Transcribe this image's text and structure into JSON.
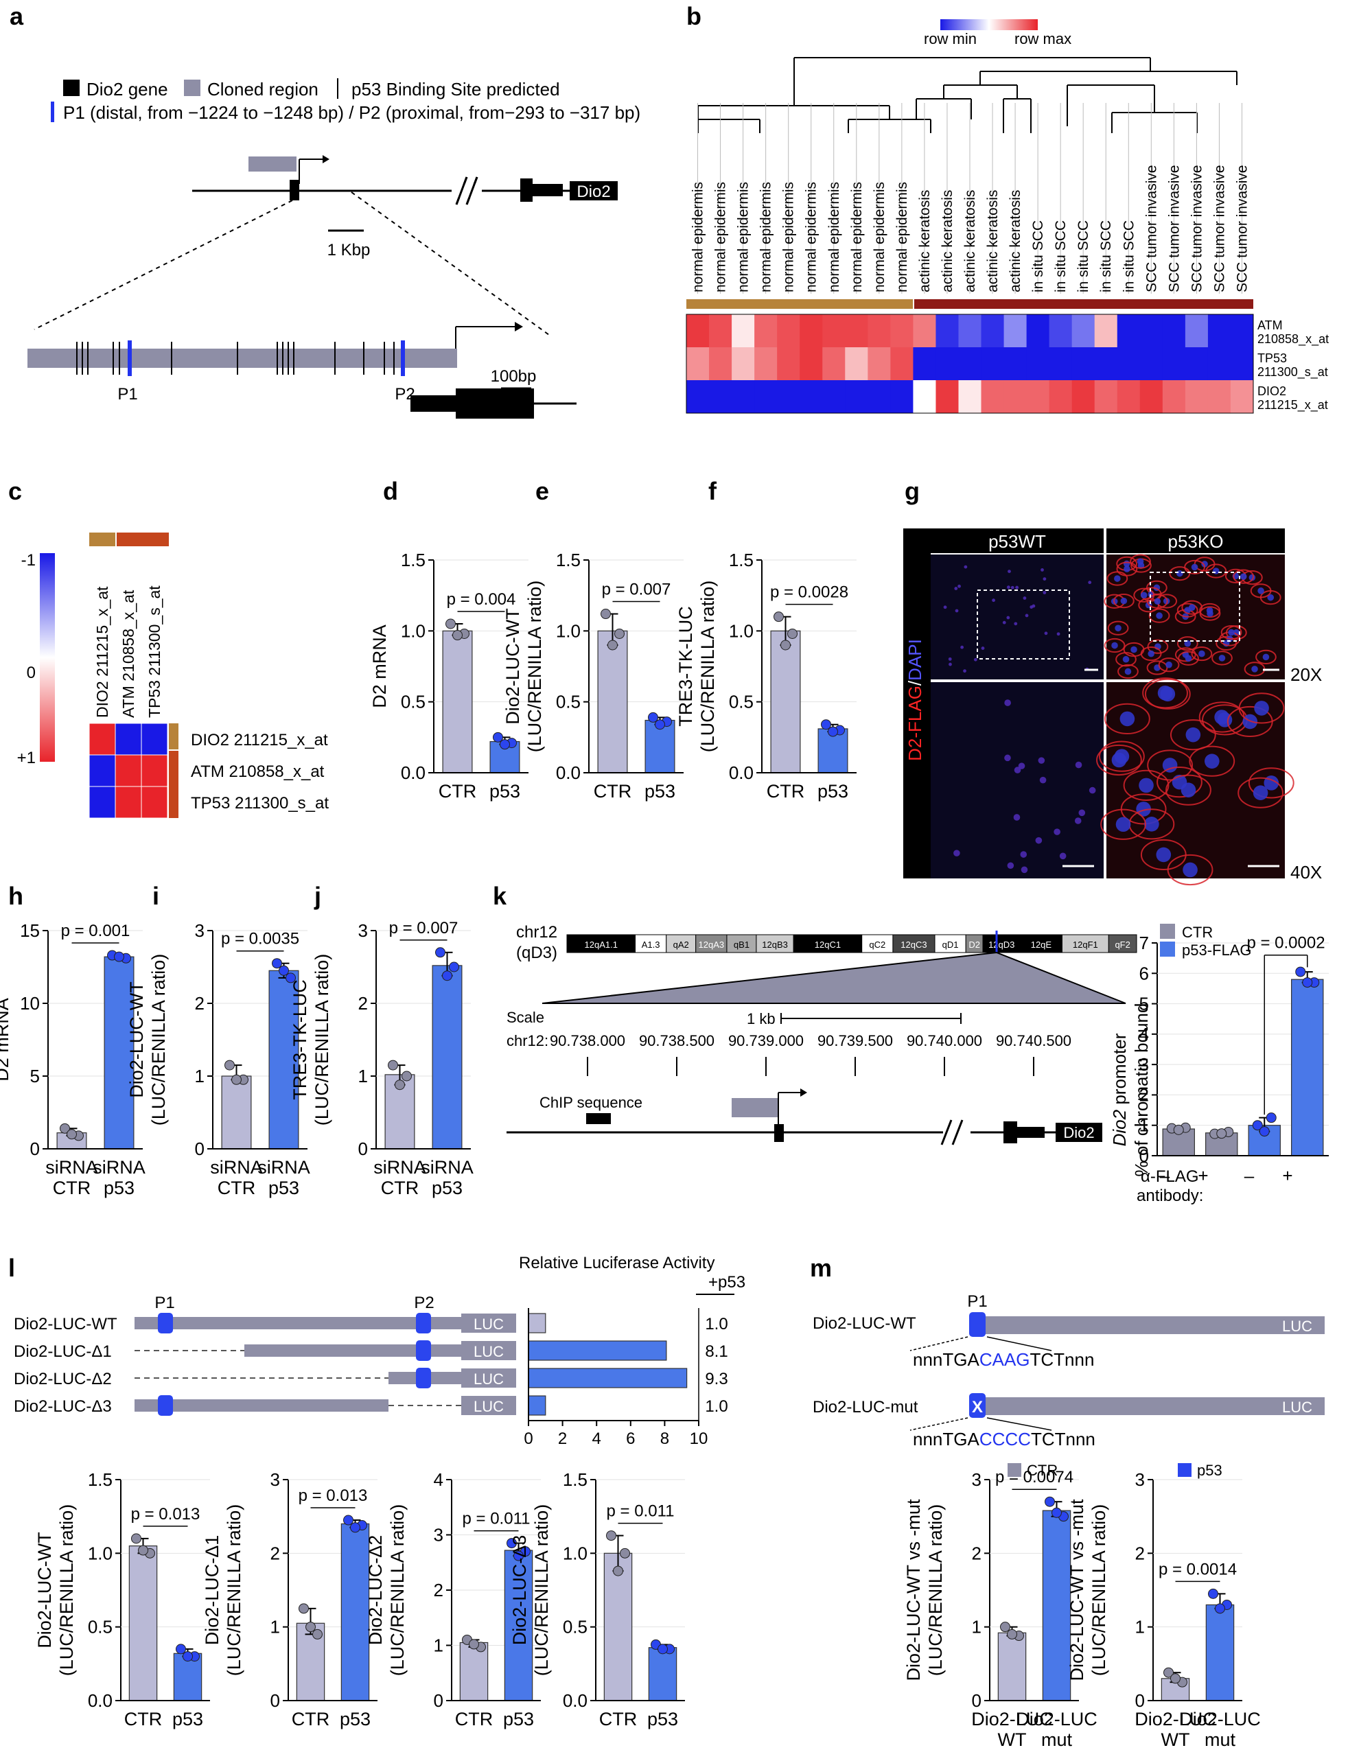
{
  "panel_letters": [
    "a",
    "b",
    "c",
    "d",
    "e",
    "f",
    "g",
    "h",
    "i",
    "j",
    "k",
    "l",
    "m"
  ],
  "colors": {
    "ctr": "#b9b9d6",
    "p53": "#4a78e8",
    "dark_gray": "#8e8ea6",
    "heat_red": "#e8232a",
    "heat_blue": "#1919e6",
    "brown": "#b7833a",
    "dark_red": "#8e1a16"
  },
  "panel_a": {
    "legend_dio2": "Dio2 gene",
    "legend_cloned": "Cloned region",
    "legend_binding": "p53 Binding Site predicted",
    "legend_p": "P1 (distal, from −1224 to −1248 bp) / P2 (proximal, from−293 to −317 bp)",
    "gene_label": "Dio2",
    "scale_kbp": "1 Kbp",
    "scale_bp": "100bp",
    "p1": "P1",
    "p2": "P2"
  },
  "panel_b": {
    "row_min": "row min",
    "row_max": "row max",
    "columns": [
      "normal epidermis",
      "normal epidermis",
      "normal epidermis",
      "normal epidermis",
      "normal epidermis",
      "normal epidermis",
      "normal epidermis",
      "normal epidermis",
      "normal epidermis",
      "normal epidermis",
      "actinic keratosis",
      "actinic keratosis",
      "actinic keratosis",
      "actinic keratosis",
      "actinic keratosis",
      "in situ SCC",
      "in situ SCC",
      "in situ SCC",
      "in situ SCC",
      "in situ SCC",
      "SCC tumor invasive",
      "SCC tumor invasive",
      "SCC tumor invasive",
      "SCC tumor invasive",
      "SCC tumor invasive"
    ],
    "rows": [
      {
        "label1": "ATM",
        "label2": "210858_x_at",
        "values": [
          0.9,
          0.8,
          0.1,
          0.7,
          0.8,
          0.9,
          0.85,
          0.85,
          0.8,
          0.75,
          0.6,
          -0.9,
          -0.7,
          -0.9,
          -0.5,
          -1,
          -0.8,
          -0.6,
          0.3,
          -1,
          -1,
          -1,
          -0.6,
          -1,
          -1
        ]
      },
      {
        "label1": "TP53",
        "label2": "211300_s_at",
        "values": [
          0.5,
          0.7,
          0.3,
          0.6,
          0.8,
          0.9,
          0.7,
          0.3,
          0.6,
          0.8,
          -1,
          -1,
          -1,
          -1,
          -1,
          -1,
          -1,
          -1,
          -1,
          -1,
          -1,
          -1,
          -1,
          -1,
          -1
        ]
      },
      {
        "label1": "DIO2",
        "label2": "211215_x_at",
        "values": [
          -1,
          -1,
          -1,
          -1,
          -1,
          -1,
          -1,
          -1,
          -1,
          -1,
          0,
          0.9,
          0.1,
          0.7,
          0.7,
          0.7,
          0.8,
          0.9,
          0.7,
          0.8,
          0.9,
          0.7,
          0.6,
          0.6,
          0.5
        ]
      }
    ]
  },
  "panel_c": {
    "scale_top": "-1",
    "scale_mid": "0",
    "scale_bottom": "+1",
    "col_labels": [
      "DIO2 211215_x_at",
      "ATM 210858_x_at",
      "TP53 211300_s_at"
    ],
    "row_labels": [
      "DIO2 211215_x_at",
      "ATM 210858_x_at",
      "TP53 211300_s_at"
    ],
    "matrix": [
      [
        1,
        -1,
        -1
      ],
      [
        -1,
        1,
        1
      ],
      [
        -1,
        1,
        1
      ]
    ]
  },
  "panel_g": {
    "col1": "p53WT",
    "col2": "p53KO",
    "side_label_red": "D2-FLAG",
    "side_label_sep": "/",
    "side_label_blue": "DAPI",
    "mag1": "20X",
    "mag2": "40X"
  },
  "panel_k": {
    "chrom": "chr12",
    "chrom_sub": "(qD3)",
    "bands": [
      "12qA1.1",
      "A1.3",
      "qA2",
      "12qA3",
      "qB1",
      "12qB3",
      "12qC1",
      "qC2",
      "12qC3",
      "qD1",
      "D2",
      "12qD3",
      "12qE",
      "12qF1",
      "qF2"
    ],
    "scale_label": "Scale",
    "scale_bar": "1 kb",
    "chr_label": "chr12:",
    "positions": [
      "90.738.000",
      "90.738.500",
      "90.739.000",
      "90.739.500",
      "90.740.000",
      "90.740.500"
    ],
    "chip_label": "ChIP sequence",
    "gene_label": "Dio2",
    "legend_ctr": "CTR",
    "legend_p53": "p53-FLAG",
    "ylabel_italic": "Dio2",
    "ylabel_1": " promoter",
    "ylabel_2": "% of chromatin bound",
    "antibody_line1": "α-FLAG",
    "antibody_line2": "antibody:",
    "signs": [
      "–",
      "+",
      "–",
      "+"
    ]
  },
  "panel_l": {
    "title": "Relative Luciferase Activity",
    "subtitle": "+p53",
    "p1": "P1",
    "p2": "P2",
    "luc": "LUC",
    "constructs": [
      {
        "name": "Dio2-LUC-WT",
        "value": "1.0"
      },
      {
        "name": "Dio2-LUC-Δ1",
        "value": "8.1"
      },
      {
        "name": "Dio2-LUC-Δ2",
        "value": "9.3"
      },
      {
        "name": "Dio2-LUC-Δ3",
        "value": "1.0"
      }
    ]
  },
  "panel_m": {
    "wt_label": "Dio2-LUC-WT",
    "mut_label": "Dio2-LUC-mut",
    "p1": "P1",
    "luc": "LUC",
    "x_mark": "X",
    "seq_wt": [
      "nnnTGA",
      "CAAG",
      "TCTnnn"
    ],
    "seq_mut": [
      "nnnTGA",
      "CCCC",
      "TCTnnn"
    ],
    "legend_ctr": "CTR",
    "legend_p53": "p53"
  },
  "chart_data": [
    {
      "id": "d",
      "type": "bar",
      "ylabel": [
        "D2 mRNA"
      ],
      "categories": [
        "CTR",
        "p53"
      ],
      "values": [
        1.0,
        0.22
      ],
      "points": [
        [
          1.05,
          0.98,
          0.97
        ],
        [
          0.25,
          0.21,
          0.2
        ]
      ],
      "ylim": [
        0,
        1.5
      ],
      "yticks": [
        "0.0",
        "0.5",
        "1.0",
        "1.5"
      ],
      "pvalue": "p = 0.004"
    },
    {
      "id": "e",
      "type": "bar",
      "ylabel": [
        "Dio2-LUC-WT",
        "(LUC/RENILLA ratio)"
      ],
      "categories": [
        "CTR",
        "p53"
      ],
      "values": [
        1.0,
        0.37
      ],
      "points": [
        [
          1.12,
          0.98,
          0.9
        ],
        [
          0.39,
          0.36,
          0.34
        ]
      ],
      "ylim": [
        0,
        1.5
      ],
      "yticks": [
        "0.0",
        "0.5",
        "1.0",
        "1.5"
      ],
      "pvalue": "p = 0.007"
    },
    {
      "id": "f",
      "type": "bar",
      "ylabel": [
        "TRE3-TK-LUC",
        "(LUC/RENILLA ratio)"
      ],
      "categories": [
        "CTR",
        "p53"
      ],
      "values": [
        1.0,
        0.31
      ],
      "points": [
        [
          1.1,
          0.98,
          0.9
        ],
        [
          0.34,
          0.3,
          0.29
        ]
      ],
      "ylim": [
        0,
        1.5
      ],
      "yticks": [
        "0.0",
        "0.5",
        "1.0",
        "1.5"
      ],
      "pvalue": "p = 0.0028"
    },
    {
      "id": "h",
      "type": "bar",
      "ylabel": [
        "D2 mRNA"
      ],
      "categories": [
        "siRNA\nCTR",
        "siRNA\np53"
      ],
      "values": [
        1.1,
        13.2
      ],
      "points": [
        [
          1.4,
          0.9,
          1.0
        ],
        [
          13.3,
          13.1,
          13.2
        ]
      ],
      "ylim": [
        0,
        15
      ],
      "yticks": [
        "0",
        "5",
        "10",
        "15"
      ],
      "pvalue": "p = 0.001"
    },
    {
      "id": "i",
      "type": "bar",
      "ylabel": [
        "Dio2-LUC-WT",
        "(LUC/RENILLA ratio)"
      ],
      "categories": [
        "siRNA\nCTR",
        "siRNA\np53"
      ],
      "values": [
        1.0,
        2.45
      ],
      "points": [
        [
          1.15,
          0.95,
          0.95
        ],
        [
          2.55,
          2.35,
          2.45
        ]
      ],
      "ylim": [
        0,
        3
      ],
      "yticks": [
        "0",
        "1",
        "2",
        "3"
      ],
      "pvalue": "p = 0.0035"
    },
    {
      "id": "j",
      "type": "bar",
      "ylabel": [
        "TRE3-TK-LUC",
        "(LUC/RENILLA ratio)"
      ],
      "categories": [
        "siRNA\nCTR",
        "siRNA\np53"
      ],
      "values": [
        1.02,
        2.52
      ],
      "points": [
        [
          1.15,
          1.0,
          0.88
        ],
        [
          2.7,
          2.5,
          2.38
        ]
      ],
      "ylim": [
        0,
        3
      ],
      "yticks": [
        "0",
        "1",
        "2",
        "3"
      ],
      "pvalue": "p = 0.007"
    },
    {
      "id": "k",
      "type": "bar",
      "ylabel": [],
      "categories": [
        "",
        "",
        "",
        ""
      ],
      "values": [
        0.88,
        0.75,
        1.0,
        5.8
      ],
      "points": [
        [
          0.9,
          0.92,
          0.85
        ],
        [
          0.72,
          0.78,
          0.73
        ],
        [
          1.0,
          1.25,
          0.8
        ],
        [
          6.05,
          5.7,
          5.7
        ]
      ],
      "ylim": [
        0,
        7
      ],
      "yticks": [
        "0",
        "1",
        "2",
        "3",
        "4",
        "5",
        "6",
        "7"
      ],
      "pvalue": "p = 0.0002"
    },
    {
      "id": "l_bars",
      "type": "bar",
      "orientation": "horizontal",
      "categories": [
        "Dio2-LUC-WT",
        "Dio2-LUC-Δ1",
        "Dio2-LUC-Δ2",
        "Dio2-LUC-Δ3"
      ],
      "values": [
        1.0,
        8.1,
        9.3,
        1.0
      ],
      "xlim": [
        0,
        10
      ],
      "xticks": [
        "0",
        "2",
        "4",
        "6",
        "8",
        "10"
      ]
    },
    {
      "id": "l1",
      "type": "bar",
      "ylabel": [
        "Dio2-LUC-WT",
        "(LUC/RENILLA ratio)"
      ],
      "categories": [
        "CTR",
        "p53"
      ],
      "values": [
        1.05,
        0.32
      ],
      "points": [
        [
          1.1,
          1.0,
          1.02
        ],
        [
          0.35,
          0.3,
          0.3
        ]
      ],
      "ylim": [
        0,
        1.5
      ],
      "yticks": [
        "0.0",
        "0.5",
        "1.0",
        "1.5"
      ],
      "pvalue": "p = 0.013"
    },
    {
      "id": "l2",
      "type": "bar",
      "ylabel": [
        "Dio2-LUC-Δ1",
        "(LUC/RENILLA ratio)"
      ],
      "categories": [
        "CTR",
        "p53"
      ],
      "values": [
        1.05,
        2.4
      ],
      "points": [
        [
          1.25,
          0.9,
          1.0
        ],
        [
          2.45,
          2.38,
          2.35
        ]
      ],
      "ylim": [
        0,
        3
      ],
      "yticks": [
        "0",
        "1",
        "2",
        "3"
      ],
      "pvalue": "p = 0.013"
    },
    {
      "id": "l3",
      "type": "bar",
      "ylabel": [
        "Dio2-LUC-Δ2",
        "(LUC/RENILLA ratio)"
      ],
      "categories": [
        "CTR",
        "p53"
      ],
      "values": [
        1.05,
        2.72
      ],
      "points": [
        [
          1.1,
          0.97,
          1.02
        ],
        [
          2.85,
          2.7,
          2.62
        ]
      ],
      "ylim": [
        0,
        4
      ],
      "yticks": [
        "0",
        "1",
        "2",
        "3",
        "4"
      ],
      "pvalue": "p = 0.011"
    },
    {
      "id": "l4",
      "type": "bar",
      "ylabel": [
        "Dio2-LUC-Δ3",
        "(LUC/RENILLA ratio)"
      ],
      "categories": [
        "CTR",
        "p53"
      ],
      "values": [
        1.0,
        0.36
      ],
      "points": [
        [
          1.12,
          1.0,
          0.88
        ],
        [
          0.38,
          0.35,
          0.35
        ]
      ],
      "ylim": [
        0,
        1.5
      ],
      "yticks": [
        "0.0",
        "0.5",
        "1.0",
        "1.5"
      ],
      "pvalue": "p = 0.011"
    },
    {
      "id": "m1",
      "type": "bar",
      "ylabel": [
        "Dio2-LUC-WT vs -mut",
        "(LUC/RENILLA ratio)"
      ],
      "categories": [
        "Dio2-LUC\nWT",
        "Dio2-LUC\nmut"
      ],
      "values": [
        0.92,
        2.58
      ],
      "points": [
        [
          1.0,
          0.88,
          0.9
        ],
        [
          2.7,
          2.5,
          2.55
        ]
      ],
      "ylim": [
        0,
        3
      ],
      "yticks": [
        "0",
        "1",
        "2",
        "3"
      ],
      "pvalue": "p = 0.0074"
    },
    {
      "id": "m2",
      "type": "bar",
      "ylabel": [
        "Dio2-LUC-WT vs -mut",
        "(LUC/RENILLA ratio)"
      ],
      "categories": [
        "Dio2-LUC\nWT",
        "Dio2-LUC\nmut"
      ],
      "values": [
        0.3,
        1.3
      ],
      "points": [
        [
          0.38,
          0.25,
          0.3
        ],
        [
          1.45,
          1.3,
          1.25
        ]
      ],
      "ylim": [
        0,
        3
      ],
      "yticks": [
        "0",
        "1",
        "2",
        "3"
      ],
      "pvalue": "p = 0.0014"
    }
  ]
}
